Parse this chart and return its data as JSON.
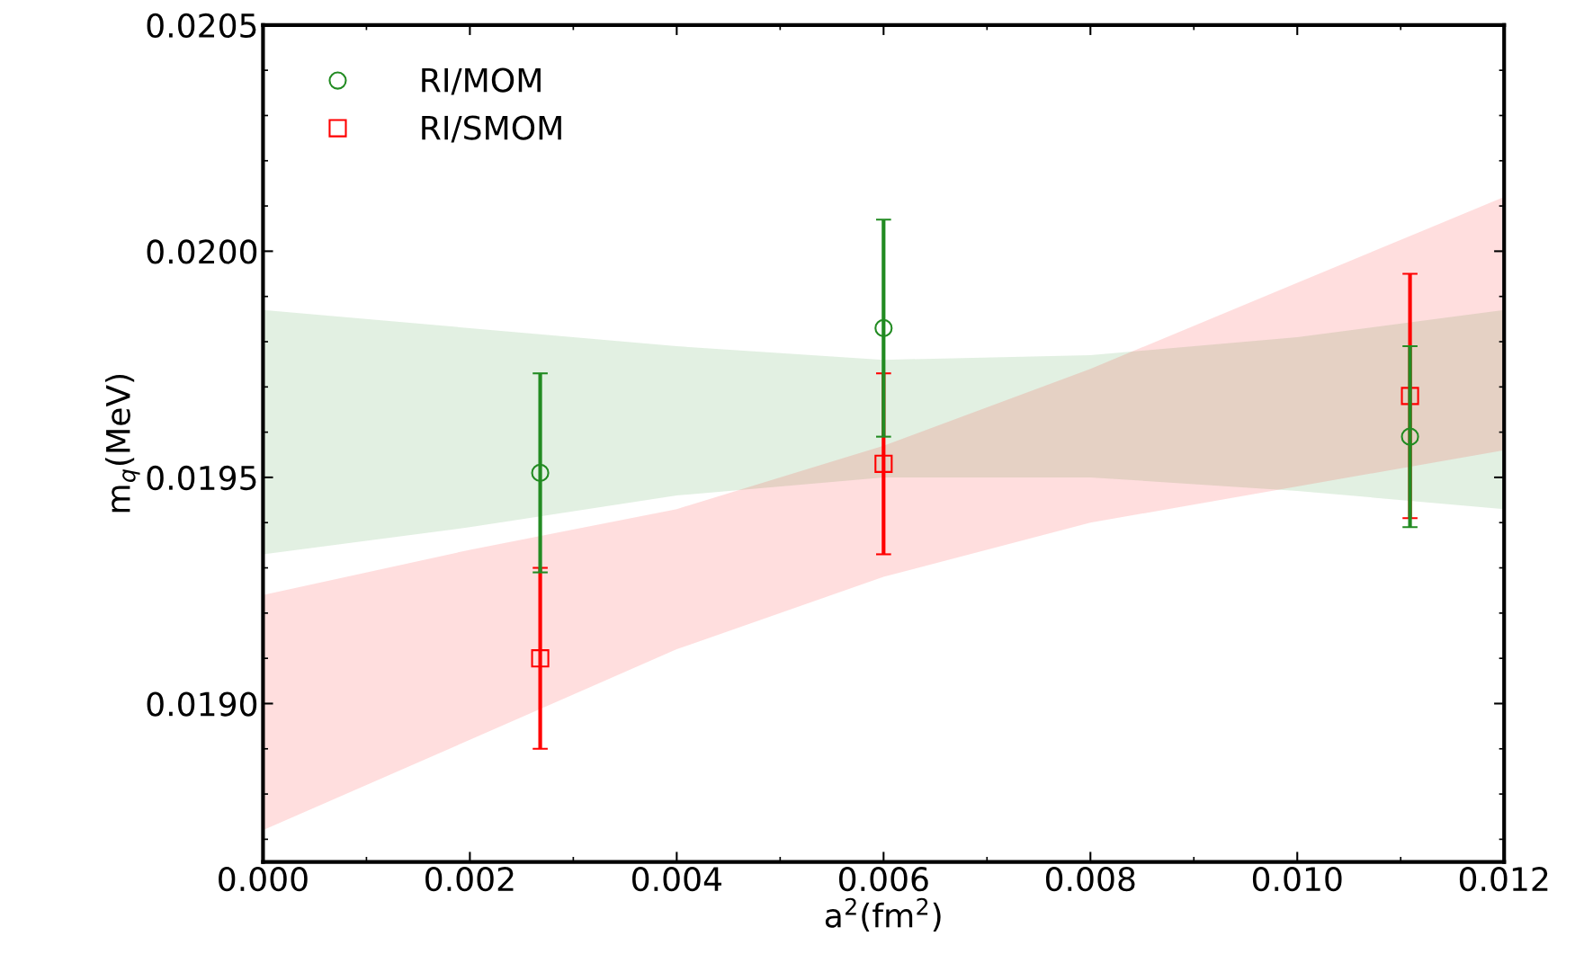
{
  "chart_data": {
    "type": "scatter",
    "xlabel": "a$^{2}$(fm$^{2}$)",
    "ylabel": "m$_{q}$(MeV)",
    "xlim": [
      0,
      0.012
    ],
    "xticks": [
      {
        "value": 0,
        "label": "0.000"
      },
      {
        "value": 0.002,
        "label": "0.002"
      },
      {
        "value": 0.004,
        "label": "0.004"
      },
      {
        "value": 0.006,
        "label": "0.006"
      },
      {
        "value": 0.008,
        "label": "0.008"
      },
      {
        "value": 0.01,
        "label": "0.010"
      },
      {
        "value": 0.012,
        "label": "0.012"
      }
    ],
    "ylim": [
      0.01865,
      0.0205
    ],
    "yticks": [
      {
        "value": 0.019,
        "label": "0.0190"
      },
      {
        "value": 0.0195,
        "label": "0.0195"
      },
      {
        "value": 0.02,
        "label": "0.0200"
      },
      {
        "value": 0.0205,
        "label": "0.0205"
      }
    ],
    "grid": false,
    "legend": "top left",
    "series": [
      {
        "name": "RI/MOM",
        "marker": "circle",
        "color": "#228b22",
        "x": [
          0.00268,
          0.006,
          0.01109
        ],
        "values": [
          0.01951,
          0.01983,
          0.01959
        ],
        "errors": [
          0.00022,
          0.00024,
          0.0002
        ]
      },
      {
        "name": "RI/SMOM",
        "marker": "square",
        "color": "#ff0000",
        "x": [
          0.00268,
          0.006,
          0.01109
        ],
        "values": [
          0.0191,
          0.01953,
          0.01968
        ],
        "errors": [
          0.0002,
          0.0002,
          0.00027
        ]
      },
      {
        "type": "area",
        "color": "#228b22",
        "x": [
          0,
          0.002,
          0.004,
          0.006,
          0.008,
          0.01,
          0.012
        ],
        "values": [
          null,
          null,
          null,
          null,
          null,
          null,
          null
        ],
        "lower": [
          0.01933,
          0.01939,
          0.01946,
          0.0195,
          0.0195,
          0.01947,
          0.01943
        ],
        "upper": [
          0.01987,
          0.01983,
          0.01979,
          0.01976,
          0.01977,
          0.01981,
          0.01987
        ]
      },
      {
        "type": "area",
        "color": "#ff0000",
        "x": [
          0,
          0.002,
          0.004,
          0.006,
          0.008,
          0.01,
          0.012
        ],
        "values": [
          null,
          null,
          null,
          null,
          null,
          null,
          null
        ],
        "lower": [
          0.01872,
          0.01892,
          0.01912,
          0.01928,
          0.0194,
          0.01948,
          0.01956
        ],
        "upper": [
          0.01924,
          0.01934,
          0.01943,
          0.01957,
          0.01974,
          0.01993,
          0.02012
        ]
      }
    ]
  }
}
